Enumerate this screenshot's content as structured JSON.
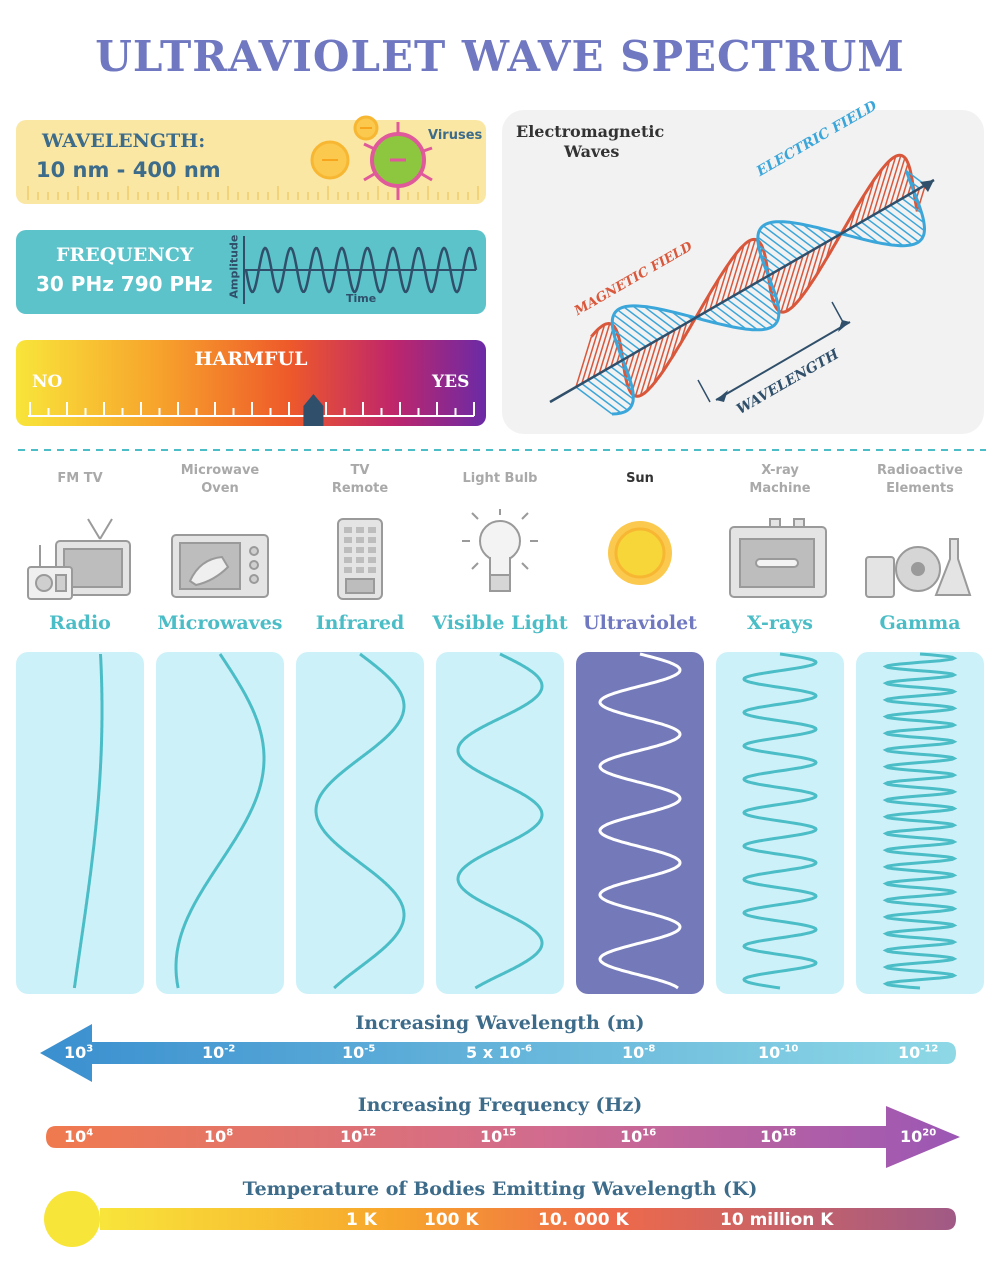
{
  "title": "ULTRAVIOLET WAVE SPECTRUM",
  "wavelength_box": {
    "label": "WAVELENGTH:",
    "value": "10 nm - 400 nm",
    "note": "Viruses"
  },
  "frequency_box": {
    "label": "FREQUENCY",
    "value": "30 PHz 790 PHz",
    "y_label": "Amplitude",
    "x_label": "Time"
  },
  "harmful_box": {
    "title": "HARMFUL",
    "no": "NO",
    "yes": "YES",
    "level": 0.64
  },
  "em_panel": {
    "title_line1": "Electromagnetic",
    "title_line2": "Waves",
    "electric": "ELECTRIC FIELD",
    "magnetic": "MAGNETIC FIELD",
    "wavelength": "WAVELENGTH"
  },
  "sources": [
    {
      "line1": "FM  TV",
      "line2": ""
    },
    {
      "line1": "Microwave",
      "line2": "Oven"
    },
    {
      "line1": "TV",
      "line2": "Remote"
    },
    {
      "line1": "Light Bulb",
      "line2": ""
    },
    {
      "line1": "Sun",
      "line2": ""
    },
    {
      "line1": "X-ray",
      "line2": "Machine"
    },
    {
      "line1": "Radioactive",
      "line2": "Elements"
    }
  ],
  "bands": [
    "Radio",
    "Microwaves",
    "Infrared",
    "Visible Light",
    "Ultraviolet",
    "X-rays",
    "Gamma"
  ],
  "highlight_band": "Ultraviolet",
  "wavelength_axis": {
    "title": "Increasing Wavelength (m)",
    "ticks": [
      {
        "base": "10",
        "exp": "3"
      },
      {
        "base": "10",
        "exp": "-2"
      },
      {
        "base": "10",
        "exp": "-5"
      },
      {
        "base": "5 x 10",
        "exp": "-6"
      },
      {
        "base": "10",
        "exp": "-8"
      },
      {
        "base": "10",
        "exp": "-10"
      },
      {
        "base": "10",
        "exp": "-12"
      }
    ]
  },
  "frequency_axis": {
    "title": "Increasing Frequency (Hz)",
    "ticks": [
      {
        "base": "10",
        "exp": "4"
      },
      {
        "base": "10",
        "exp": "8"
      },
      {
        "base": "10",
        "exp": "12"
      },
      {
        "base": "10",
        "exp": "15"
      },
      {
        "base": "10",
        "exp": "16"
      },
      {
        "base": "10",
        "exp": "18"
      },
      {
        "base": "10",
        "exp": "20"
      }
    ]
  },
  "temperature_axis": {
    "title": "Temperature of Bodies Emitting Wavelength (K)",
    "ticks": [
      "1 K",
      "100 K",
      "10. 000 K",
      "10 million K"
    ]
  },
  "colors": {
    "title": "#6f78c0",
    "teal": "#4bbdc6",
    "uv": "#7479ba",
    "panel": "#cdf1f9"
  }
}
